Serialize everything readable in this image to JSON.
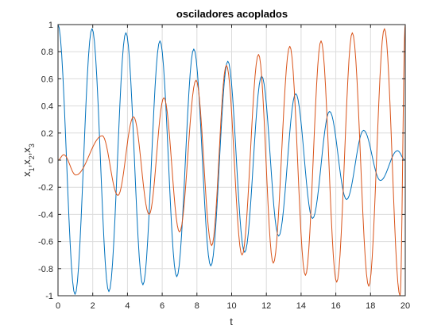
{
  "chart_data": {
    "type": "line",
    "title": "osciladores acoplados",
    "xlabel": "t",
    "ylabel_parts": [
      "x",
      "1",
      ",x",
      "2",
      ",x",
      "3"
    ],
    "xlim": [
      0,
      20
    ],
    "ylim": [
      -1,
      1
    ],
    "x_ticks": [
      0,
      2,
      4,
      6,
      8,
      10,
      12,
      14,
      16,
      18,
      20
    ],
    "x_tick_labels": [
      "0",
      "2",
      "4",
      "6",
      "8",
      "10",
      "12",
      "14",
      "16",
      "18",
      "20"
    ],
    "y_ticks": [
      -1,
      -0.8,
      -0.6,
      -0.4,
      -0.2,
      0,
      0.2,
      0.4,
      0.6,
      0.8,
      1
    ],
    "y_tick_labels": [
      "-1",
      "-0.8",
      "-0.6",
      "-0.4",
      "-0.2",
      "0",
      "0.2",
      "0.4",
      "0.6",
      "0.8",
      "1"
    ],
    "grid": true,
    "box": true,
    "colors": {
      "axes": "#262626",
      "grid": "#dcdcdc",
      "series1": "#0072BD",
      "series2": "#D95319"
    },
    "series": [
      {
        "color": "#0072BD",
        "t": [
          0,
          0.98,
          1.96,
          2.93,
          3.91,
          4.89,
          5.87,
          6.84,
          7.82,
          8.8,
          9.78,
          10.75,
          11.73,
          12.71,
          13.69,
          14.66,
          15.64,
          16.62,
          17.6,
          18.57,
          19.55,
          20
        ],
        "values": [
          1,
          -0.99,
          0.97,
          -0.97,
          0.94,
          -0.92,
          0.88,
          -0.86,
          0.82,
          -0.78,
          0.73,
          -0.68,
          0.62,
          -0.56,
          0.49,
          -0.43,
          0.36,
          -0.29,
          0.22,
          -0.15,
          0.07,
          0.0
        ]
      },
      {
        "color": "#D95319",
        "t": [
          0,
          0.33,
          1.03,
          2.55,
          3.45,
          4.35,
          5.25,
          6.1,
          7.0,
          7.95,
          8.85,
          9.7,
          10.6,
          11.55,
          12.4,
          13.35,
          14.25,
          15.15,
          16.05,
          16.95,
          17.9,
          18.8,
          19.7,
          20
        ],
        "values": [
          0,
          0.04,
          -0.11,
          0.18,
          -0.26,
          0.32,
          -0.4,
          0.46,
          -0.53,
          0.59,
          -0.63,
          0.7,
          -0.7,
          0.78,
          -0.76,
          0.84,
          -0.85,
          0.88,
          -0.9,
          0.94,
          -0.93,
          0.97,
          -1.0,
          1.0
        ]
      },
      {
        "name": "x3",
        "color": "#EDB120",
        "t": [],
        "values": []
      }
    ]
  }
}
